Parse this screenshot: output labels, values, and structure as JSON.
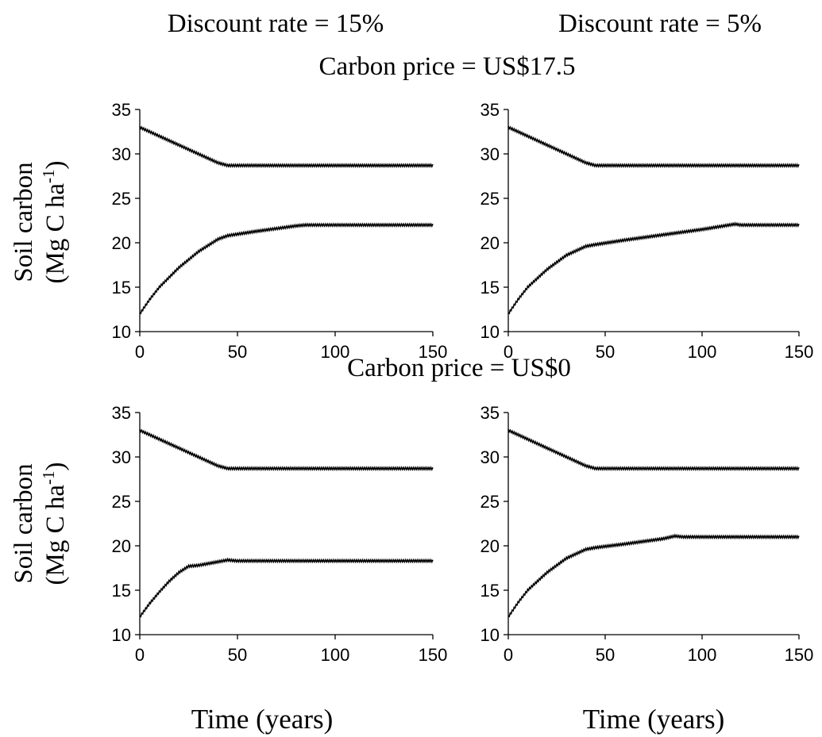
{
  "figure": {
    "column_titles": [
      "Discount rate = 15%",
      "Discount rate = 5%"
    ],
    "row_titles": [
      "Carbon price = US$17.5",
      "Carbon price = US$0"
    ],
    "y_label_line1": "Soil carbon",
    "y_label_line2_main": "(Mg C ha",
    "y_label_line2_sup": "-1",
    "y_label_line2_end": ")",
    "x_label": "Time (years)"
  },
  "chart_data": [
    {
      "type": "line",
      "panel": "price-17.5-rate-15",
      "xlabel": "Time (years)",
      "ylabel": "Soil carbon (Mg C ha-1)",
      "xlim": [
        0,
        150
      ],
      "ylim": [
        10,
        35
      ],
      "xticks": [
        0,
        50,
        100,
        150
      ],
      "yticks": [
        10,
        15,
        20,
        25,
        30,
        35
      ],
      "grid": false,
      "series": [
        {
          "x": [
            0,
            5,
            10,
            20,
            30,
            40,
            45,
            150
          ],
          "y": [
            33.0,
            32.5,
            32.0,
            31.0,
            30.0,
            29.0,
            28.7,
            28.7
          ]
        },
        {
          "x": [
            0,
            5,
            10,
            20,
            30,
            40,
            45,
            60,
            80,
            85,
            150
          ],
          "y": [
            12.0,
            13.6,
            15.0,
            17.2,
            19.0,
            20.4,
            20.8,
            21.3,
            21.9,
            22.0,
            22.0
          ]
        }
      ]
    },
    {
      "type": "line",
      "panel": "price-17.5-rate-5",
      "xlabel": "Time (years)",
      "ylabel": "Soil carbon (Mg C ha-1)",
      "xlim": [
        0,
        150
      ],
      "ylim": [
        10,
        35
      ],
      "xticks": [
        0,
        50,
        100,
        150
      ],
      "yticks": [
        10,
        15,
        20,
        25,
        30,
        35
      ],
      "grid": false,
      "series": [
        {
          "x": [
            0,
            5,
            10,
            20,
            30,
            40,
            45,
            150
          ],
          "y": [
            33.0,
            32.5,
            32.0,
            31.0,
            30.0,
            29.0,
            28.7,
            28.7
          ]
        },
        {
          "x": [
            0,
            5,
            10,
            20,
            30,
            40,
            45,
            60,
            80,
            100,
            117,
            120,
            150
          ],
          "y": [
            12.0,
            13.6,
            15.0,
            17.0,
            18.6,
            19.6,
            19.8,
            20.3,
            20.9,
            21.5,
            22.1,
            22.0,
            22.0
          ]
        }
      ]
    },
    {
      "type": "line",
      "panel": "price-0-rate-15",
      "xlabel": "Time (years)",
      "ylabel": "Soil carbon (Mg C ha-1)",
      "xlim": [
        0,
        150
      ],
      "ylim": [
        10,
        35
      ],
      "xticks": [
        0,
        50,
        100,
        150
      ],
      "yticks": [
        10,
        15,
        20,
        25,
        30,
        35
      ],
      "grid": false,
      "series": [
        {
          "x": [
            0,
            5,
            10,
            20,
            30,
            40,
            45,
            150
          ],
          "y": [
            33.0,
            32.5,
            32.0,
            31.0,
            30.0,
            29.0,
            28.7,
            28.7
          ]
        },
        {
          "x": [
            0,
            5,
            10,
            15,
            20,
            25,
            30,
            40,
            45,
            50,
            150
          ],
          "y": [
            12.0,
            13.5,
            14.8,
            16.0,
            17.0,
            17.7,
            17.8,
            18.2,
            18.4,
            18.3,
            18.3
          ]
        }
      ]
    },
    {
      "type": "line",
      "panel": "price-0-rate-5",
      "xlabel": "Time (years)",
      "ylabel": "Soil carbon (Mg C ha-1)",
      "xlim": [
        0,
        150
      ],
      "ylim": [
        10,
        35
      ],
      "xticks": [
        0,
        50,
        100,
        150
      ],
      "yticks": [
        10,
        15,
        20,
        25,
        30,
        35
      ],
      "grid": false,
      "series": [
        {
          "x": [
            0,
            5,
            10,
            20,
            30,
            40,
            45,
            60,
            80,
            86,
            90,
            150
          ],
          "y": [
            12.0,
            13.6,
            15.0,
            17.0,
            18.6,
            19.6,
            19.8,
            20.2,
            20.8,
            21.1,
            21.0,
            21.0
          ]
        },
        {
          "x": [
            0,
            5,
            10,
            20,
            30,
            40,
            45,
            150
          ],
          "y": [
            33.0,
            32.5,
            32.0,
            31.0,
            30.0,
            29.0,
            28.7,
            28.7
          ]
        }
      ]
    }
  ]
}
